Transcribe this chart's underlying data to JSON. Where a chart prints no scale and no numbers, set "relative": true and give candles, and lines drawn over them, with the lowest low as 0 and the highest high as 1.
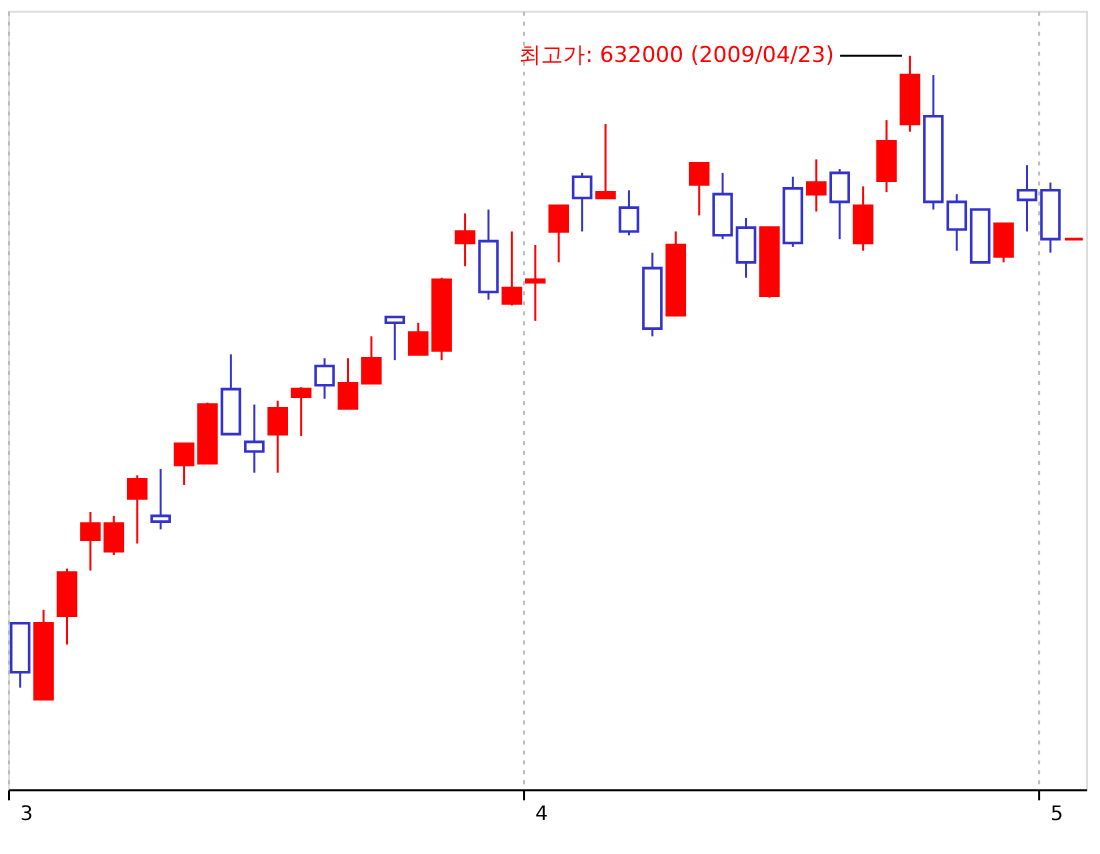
{
  "chart_data": {
    "type": "candlestick",
    "relative": true,
    "categories": [
      "3",
      null,
      null,
      null,
      null,
      null,
      null,
      null,
      null,
      null,
      null,
      null,
      null,
      null,
      null,
      null,
      null,
      null,
      null,
      null,
      null,
      null,
      "4",
      null,
      null,
      null,
      null,
      null,
      null,
      null,
      null,
      null,
      null,
      null,
      null,
      null,
      null,
      null,
      null,
      null,
      null,
      null,
      null,
      null,
      "5",
      null
    ],
    "ohlc": [
      [
        0.118,
        0.118,
        0.018,
        0.042
      ],
      [
        0,
        0.139,
        0,
        0.118
      ],
      [
        0.13,
        0.203,
        0.085,
        0.197
      ],
      [
        0.248,
        0.291,
        0.2,
        0.273
      ],
      [
        0.23,
        0.285,
        0.224,
        0.273
      ],
      [
        0.312,
        0.348,
        0.242,
        0.342
      ],
      [
        0.285,
        0.358,
        0.264,
        0.276
      ],
      [
        0.364,
        0.397,
        0.333,
        0.397
      ],
      [
        0.367,
        0.461,
        0.367,
        0.458
      ],
      [
        0.482,
        0.536,
        0.412,
        0.412
      ],
      [
        0.4,
        0.458,
        0.352,
        0.385
      ],
      [
        0.412,
        0.464,
        0.352,
        0.452
      ],
      [
        0.47,
        0.485,
        0.409,
        0.482
      ],
      [
        0.518,
        0.53,
        0.467,
        0.488
      ],
      [
        0.452,
        0.53,
        0.452,
        0.491
      ],
      [
        0.491,
        0.564,
        0.491,
        0.53
      ],
      [
        0.594,
        0.594,
        0.527,
        0.585
      ],
      [
        0.536,
        0.585,
        0.536,
        0.57
      ],
      [
        0.542,
        0.655,
        0.527,
        0.652
      ],
      [
        0.709,
        0.755,
        0.673,
        0.727
      ],
      [
        0.712,
        0.761,
        0.621,
        0.633
      ],
      [
        0.615,
        0.727,
        0.612,
        0.639
      ],
      [
        0.648,
        0.706,
        0.588,
        0.652
      ],
      [
        0.727,
        0.767,
        0.679,
        0.767
      ],
      [
        0.812,
        0.818,
        0.727,
        0.779
      ],
      [
        0.779,
        0.894,
        0.779,
        0.788
      ],
      [
        0.764,
        0.791,
        0.721,
        0.727
      ],
      [
        0.67,
        0.694,
        0.564,
        0.576
      ],
      [
        0.597,
        0.727,
        0.597,
        0.706
      ],
      [
        0.8,
        0.833,
        0.752,
        0.833
      ],
      [
        0.785,
        0.818,
        0.715,
        0.721
      ],
      [
        0.733,
        0.748,
        0.655,
        0.679
      ],
      [
        0.627,
        0.733,
        0.624,
        0.733
      ],
      [
        0.794,
        0.812,
        0.703,
        0.709
      ],
      [
        0.785,
        0.839,
        0.758,
        0.803
      ],
      [
        0.818,
        0.824,
        0.715,
        0.773
      ],
      [
        0.709,
        0.797,
        0.697,
        0.767
      ],
      [
        0.806,
        0.9,
        0.788,
        0.867
      ],
      [
        0.894,
        1,
        0.882,
        0.97
      ],
      [
        0.906,
        0.97,
        0.761,
        0.773
      ],
      [
        0.773,
        0.785,
        0.697,
        0.73
      ],
      [
        0.761,
        0.761,
        0.679,
        0.679
      ],
      [
        0.688,
        0.739,
        0.679,
        0.739
      ],
      [
        0.791,
        0.83,
        0.727,
        0.776
      ],
      [
        0.791,
        0.803,
        0.694,
        0.715
      ],
      [
        0.715,
        0.715,
        0.715,
        0.715
      ]
    ],
    "colors": [
      "#3333cc",
      "#ff0000",
      "#ff0000",
      "#ff0000",
      "#ff0000",
      "#ff0000",
      "#3333cc",
      "#ff0000",
      "#ff0000",
      "#3333cc",
      "#3333cc",
      "#ff0000",
      "#ff0000",
      "#3333cc",
      "#ff0000",
      "#ff0000",
      "#3333cc",
      "#ff0000",
      "#ff0000",
      "#ff0000",
      "#3333cc",
      "#ff0000",
      "#ff0000",
      "#ff0000",
      "#3333cc",
      "#ff0000",
      "#3333cc",
      "#3333cc",
      "#ff0000",
      "#ff0000",
      "#3333cc",
      "#3333cc",
      "#ff0000",
      "#3333cc",
      "#ff0000",
      "#3333cc",
      "#ff0000",
      "#ff0000",
      "#ff0000",
      "#3333cc",
      "#3333cc",
      "#3333cc",
      "#ff0000",
      "#3333cc",
      "#3333cc",
      "#ff0000"
    ],
    "grid": "x",
    "tick_labels": "x",
    "annotations": [
      "최고가: 632000 (2009/04/23)"
    ]
  }
}
